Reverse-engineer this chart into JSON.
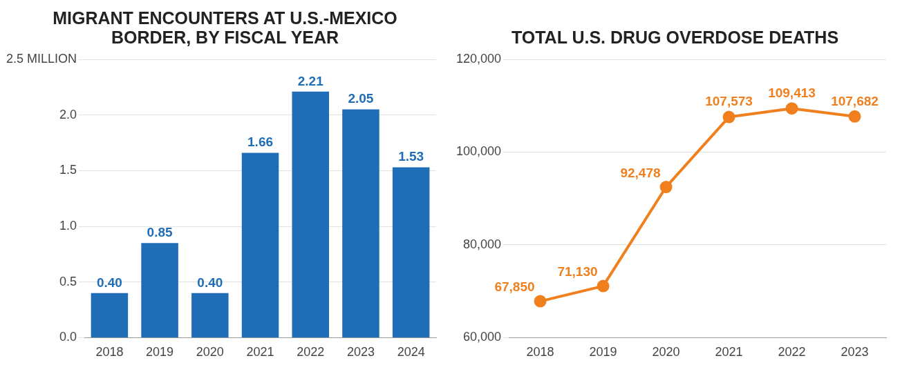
{
  "chart_data": [
    {
      "type": "bar",
      "title": "MIGRANT ENCOUNTERS AT U.S.-MEXICO BORDER, BY FISCAL YEAR",
      "categories": [
        "2018",
        "2019",
        "2020",
        "2021",
        "2022",
        "2023",
        "2024"
      ],
      "series": [
        {
          "color": "#1f6db7",
          "values": [
            0.4,
            0.85,
            0.4,
            1.66,
            2.21,
            2.05,
            1.53
          ],
          "value_labels": [
            "0.40",
            "0.85",
            "0.40",
            "1.66",
            "2.21",
            "2.05",
            "1.53"
          ]
        }
      ],
      "ylim": [
        0,
        2.5
      ],
      "yticks": [
        {
          "value": 0,
          "label": "0.0"
        },
        {
          "value": 0.5,
          "label": "0.5"
        },
        {
          "value": 1,
          "label": "1.0"
        },
        {
          "value": 1.5,
          "label": "1.5"
        },
        {
          "value": 2,
          "label": "2.0"
        },
        {
          "value": 2.5,
          "label": "2.5 MILLION"
        }
      ],
      "grid": "y",
      "legend": false
    },
    {
      "type": "line",
      "title": "TOTAL U.S. DRUG OVERDOSE DEATHS",
      "categories": [
        "2018",
        "2019",
        "2020",
        "2021",
        "2022",
        "2023"
      ],
      "series": [
        {
          "color": "#f07f1e",
          "values": [
            67850,
            71130,
            92478,
            107573,
            109413,
            107682
          ],
          "value_labels": [
            "67,850",
            "71,130",
            "92,478",
            "107,573",
            "109,413",
            "107,682"
          ]
        }
      ],
      "ylim": [
        60000,
        120000
      ],
      "yticks": [
        {
          "value": 60000,
          "label": "60,000"
        },
        {
          "value": 80000,
          "label": "80,000"
        },
        {
          "value": 100000,
          "label": "100,000"
        },
        {
          "value": 120000,
          "label": "120,000"
        }
      ],
      "grid": "y",
      "legend": false,
      "marker": "circle",
      "line_style": "solid"
    }
  ]
}
